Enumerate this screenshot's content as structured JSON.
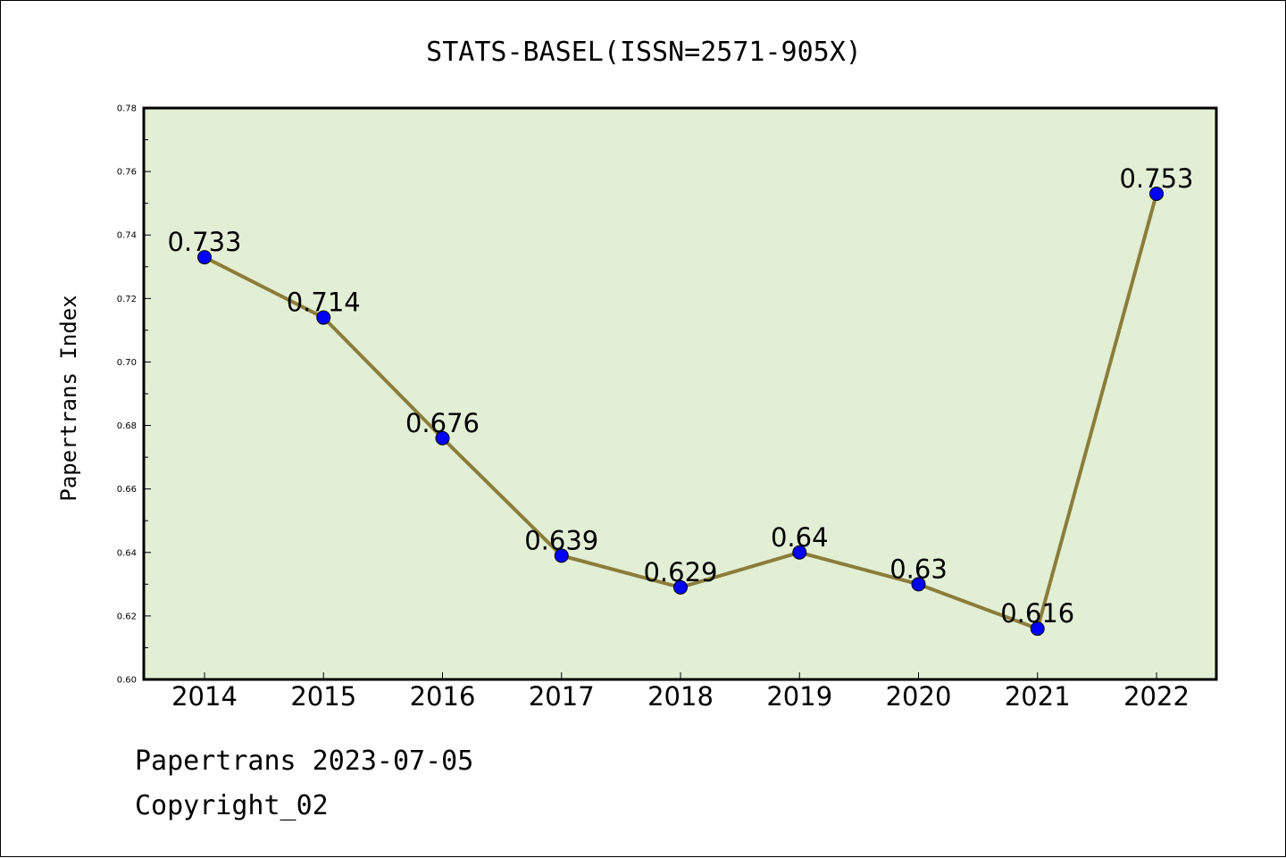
{
  "chart_data": {
    "type": "line",
    "title": "STATS-BASEL(ISSN=2571-905X)",
    "xlabel": "",
    "ylabel": "Papertrans Index",
    "categories": [
      "2014",
      "2015",
      "2016",
      "2017",
      "2018",
      "2019",
      "2020",
      "2021",
      "2022"
    ],
    "series": [
      {
        "values": [
          0.733,
          0.714,
          0.676,
          0.639,
          0.629,
          0.64,
          0.63,
          0.616,
          0.753
        ],
        "data_labels": [
          "0.733",
          "0.714",
          "0.676",
          "0.639",
          "0.629",
          "0.64",
          "0.63",
          "0.616",
          "0.753"
        ]
      }
    ],
    "ylim": [
      0.6,
      0.78
    ],
    "yticks": [
      "0.60",
      "0.62",
      "0.64",
      "0.66",
      "0.68",
      "0.70",
      "0.72",
      "0.74",
      "0.76",
      "0.78"
    ],
    "grid": false,
    "legend": "none",
    "colors": {
      "plot_background": "#e2efd5",
      "line": "#8b7d3a",
      "marker": "#0000ff",
      "axes": "#000000"
    }
  },
  "footer": {
    "line1": "Papertrans 2023-07-05",
    "line2": "Copyright_02"
  }
}
